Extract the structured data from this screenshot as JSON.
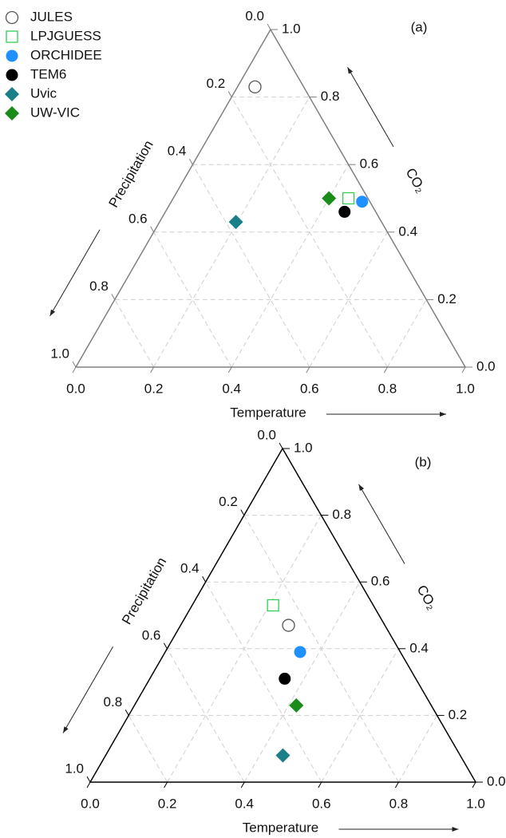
{
  "chart_data": [
    {
      "type": "ternary",
      "label": "(a)",
      "frame_color": "#808080",
      "axes": {
        "temperature": {
          "title": "Temperature",
          "ticks": [
            {
              "value": 0,
              "label": "0.0"
            },
            0.2,
            0.4,
            0.6,
            0.8,
            {
              "value": 1,
              "label": "1.0"
            }
          ]
        },
        "co2": {
          "title": "CO₂",
          "ticks": [
            {
              "value": 0,
              "label": "0.0"
            },
            0.2,
            0.4,
            0.6,
            0.8,
            {
              "value": 1,
              "label": "1.0"
            }
          ]
        },
        "precipitation": {
          "title": "Precipitation",
          "ticks": [
            {
              "value": 0,
              "label": "0.0"
            },
            0.2,
            0.4,
            0.6,
            0.8,
            {
              "value": 1,
              "label": "1.0"
            }
          ]
        }
      },
      "grid": true,
      "series": [
        {
          "name": "JULES",
          "color": "#555555",
          "marker": "open-circle",
          "temperature": 0.045,
          "co2": 0.83,
          "precipitation": 0.125
        },
        {
          "name": "LPJGUESS",
          "color": "#33cc55",
          "marker": "open-square",
          "temperature": 0.45,
          "co2": 0.5,
          "precipitation": 0.05
        },
        {
          "name": "ORCHIDEE",
          "color": "#1e90ff",
          "marker": "circle",
          "temperature": 0.49,
          "co2": 0.49,
          "precipitation": 0.02
        },
        {
          "name": "TEM6",
          "color": "#000000",
          "marker": "circle",
          "temperature": 0.46,
          "co2": 0.46,
          "precipitation": 0.08
        },
        {
          "name": "Uvic",
          "color": "#1b7f8a",
          "marker": "diamond",
          "temperature": 0.196,
          "co2": 0.43,
          "precipitation": 0.374
        },
        {
          "name": "UW-VIC",
          "color": "#1a8c1a",
          "marker": "diamond",
          "temperature": 0.4,
          "co2": 0.5,
          "precipitation": 0.1
        }
      ]
    },
    {
      "type": "ternary",
      "label": "(b)",
      "frame_color": "#000000",
      "axes": {
        "temperature": {
          "title": "Temperature",
          "ticks": [
            {
              "value": 0,
              "label": "0.0"
            },
            0.2,
            0.4,
            0.6,
            0.8,
            {
              "value": 1,
              "label": "1.0"
            }
          ]
        },
        "co2": {
          "title": "CO₂",
          "ticks": [
            {
              "value": 0,
              "label": "0.0"
            },
            0.2,
            0.4,
            0.6,
            0.8,
            {
              "value": 1,
              "label": "1.0"
            }
          ]
        },
        "precipitation": {
          "title": "Precipitation",
          "ticks": [
            {
              "value": 0,
              "label": "0.0"
            },
            0.2,
            0.4,
            0.6,
            0.8,
            {
              "value": 1,
              "label": "1.0"
            }
          ]
        }
      },
      "grid": true,
      "series": [
        {
          "color": "#555555",
          "marker": "open-circle",
          "temperature": 0.28,
          "co2": 0.47,
          "precipitation": 0.25
        },
        {
          "color": "#33cc55",
          "marker": "open-square",
          "temperature": 0.21,
          "co2": 0.53,
          "precipitation": 0.26
        },
        {
          "color": "#1e90ff",
          "marker": "circle",
          "temperature": 0.35,
          "co2": 0.39,
          "precipitation": 0.26
        },
        {
          "color": "#000000",
          "marker": "circle",
          "temperature": 0.35,
          "co2": 0.31,
          "precipitation": 0.34
        },
        {
          "color": "#1b7f8a",
          "marker": "diamond",
          "temperature": 0.46,
          "co2": 0.08,
          "precipitation": 0.46
        },
        {
          "color": "#1a8c1a",
          "marker": "diamond",
          "temperature": 0.42,
          "co2": 0.23,
          "precipitation": 0.35
        }
      ]
    }
  ]
}
